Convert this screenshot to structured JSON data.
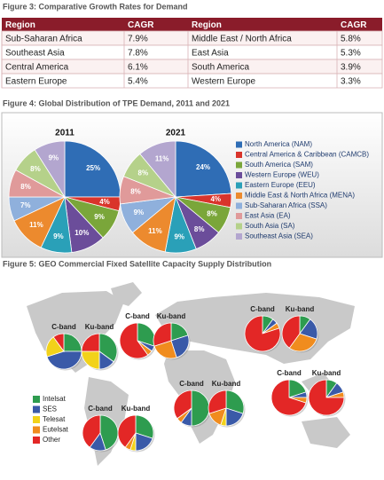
{
  "figure3": {
    "caption": "Figure 3: Comparative Growth Rates for Demand",
    "header": [
      "Region",
      "CAGR",
      "Region",
      "CAGR"
    ],
    "rows": [
      [
        "Sub-Saharan Africa",
        "7.9%",
        "Middle East / North Africa",
        "5.8%"
      ],
      [
        "Southeast Asia",
        "7.8%",
        "East Asia",
        "5.3%"
      ],
      [
        "Central America",
        "6.1%",
        "South America",
        "3.9%"
      ],
      [
        "Eastern Europe",
        "5.4%",
        "Western Europe",
        "3.3%"
      ]
    ]
  },
  "figure4": {
    "caption": "Figure 4: Global Distribution of TPE Demand, 2011 and 2021",
    "type": "pie",
    "categories": [
      "North America (NAM)",
      "Central America & Caribbean (CAMCB)",
      "South America (SAM)",
      "Western Europe (WEU)",
      "Eastern Europe (EEU)",
      "Middle East & North Africa (MENA)",
      "Sub-Saharan Africa (SSA)",
      "East Asia (EA)",
      "South Asia (SA)",
      "Southeast Asia (SEA)"
    ],
    "colors": [
      "#2f6db5",
      "#d9342b",
      "#7aa63a",
      "#6b4d9a",
      "#2aa0b8",
      "#ec8a2e",
      "#8fb0dc",
      "#e09a9a",
      "#b5d18a",
      "#b3a6cf"
    ],
    "pies": [
      {
        "title": "2011",
        "values": [
          25,
          4,
          9,
          10,
          9,
          11,
          7,
          8,
          8,
          9
        ],
        "value_labels": [
          "25%",
          "4%",
          "9%",
          "10%",
          "9%",
          "11%",
          "7%",
          "8%",
          "8%",
          "9%"
        ]
      },
      {
        "title": "2021",
        "values": [
          24,
          4,
          8,
          8,
          9,
          11,
          9,
          8,
          8,
          11
        ],
        "value_labels": [
          "24%",
          "4%",
          "8%",
          "8%",
          "9%",
          "11%",
          "9%",
          "8%",
          "8%",
          "11%"
        ]
      }
    ]
  },
  "figure5": {
    "caption": "Figure 5: GEO Commercial Fixed Satellite Capacity Supply Distribution",
    "type": "pie",
    "categories": [
      "Intelsat",
      "SES",
      "Telesat",
      "Eutelsat",
      "Other"
    ],
    "colors": [
      "#2e9c4f",
      "#3a5aa8",
      "#f2d21a",
      "#f08c1e",
      "#e32726"
    ],
    "groups": [
      {
        "pies": [
          {
            "label": "C-band",
            "values": [
              25,
              45,
              20,
              0,
              10
            ]
          },
          {
            "label": "Ku-band",
            "values": [
              35,
              15,
              25,
              0,
              25
            ]
          }
        ]
      },
      {
        "pies": [
          {
            "label": "C-band",
            "values": [
              30,
              5,
              0,
              5,
              60
            ]
          },
          {
            "label": "Ku-band",
            "values": [
              20,
              25,
              0,
              25,
              30
            ]
          }
        ]
      },
      {
        "pies": [
          {
            "label": "C-band",
            "values": [
              10,
              5,
              0,
              5,
              80
            ]
          },
          {
            "label": "Ku-band",
            "values": [
              10,
              20,
              0,
              30,
              40
            ]
          }
        ]
      },
      {
        "pies": [
          {
            "label": "C-band",
            "values": [
              50,
              10,
              0,
              5,
              35
            ]
          },
          {
            "label": "Ku-band",
            "values": [
              30,
              20,
              5,
              15,
              30
            ]
          }
        ]
      },
      {
        "pies": [
          {
            "label": "C-band",
            "values": [
              20,
              5,
              0,
              5,
              70
            ]
          },
          {
            "label": "Ku-band",
            "values": [
              10,
              10,
              0,
              5,
              75
            ]
          }
        ]
      },
      {
        "pies": [
          {
            "label": "C-band",
            "values": [
              45,
              15,
              0,
              0,
              40
            ]
          },
          {
            "label": "Ku-band",
            "values": [
              30,
              20,
              5,
              5,
              40
            ]
          }
        ]
      }
    ]
  }
}
